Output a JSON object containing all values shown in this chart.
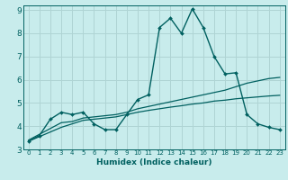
{
  "xlabel": "Humidex (Indice chaleur)",
  "background_color": "#c8ecec",
  "grid_color": "#afd4d4",
  "line_color": "#006060",
  "xlim": [
    -0.5,
    23.5
  ],
  "ylim": [
    3,
    9.2
  ],
  "xticks": [
    0,
    1,
    2,
    3,
    4,
    5,
    6,
    7,
    8,
    9,
    10,
    11,
    12,
    13,
    14,
    15,
    16,
    17,
    18,
    19,
    20,
    21,
    22,
    23
  ],
  "yticks": [
    3,
    4,
    5,
    6,
    7,
    8,
    9
  ],
  "curve1_x": [
    0,
    1,
    2,
    3,
    4,
    5,
    6,
    7,
    8,
    9,
    10,
    11,
    12,
    13,
    14,
    15,
    16,
    17,
    18,
    19,
    20,
    21,
    22,
    23
  ],
  "curve1_y": [
    3.35,
    3.6,
    4.3,
    4.6,
    4.5,
    4.6,
    4.1,
    3.85,
    3.85,
    4.5,
    5.15,
    5.35,
    8.25,
    8.65,
    8.0,
    9.05,
    8.25,
    7.0,
    6.25,
    6.3,
    4.5,
    4.1,
    3.95,
    3.85
  ],
  "curve2_x": [
    0,
    1,
    2,
    3,
    4,
    5,
    6,
    7,
    8,
    9,
    10,
    11,
    12,
    13,
    14,
    15,
    16,
    17,
    18,
    19,
    20,
    21,
    22,
    23
  ],
  "curve2_y": [
    3.4,
    3.65,
    3.9,
    4.15,
    4.2,
    4.35,
    4.4,
    4.45,
    4.5,
    4.6,
    4.75,
    4.85,
    4.95,
    5.05,
    5.15,
    5.25,
    5.35,
    5.45,
    5.55,
    5.7,
    5.85,
    5.95,
    6.05,
    6.1
  ],
  "curve3_x": [
    0,
    1,
    2,
    3,
    4,
    5,
    6,
    7,
    8,
    9,
    10,
    11,
    12,
    13,
    14,
    15,
    16,
    17,
    18,
    19,
    20,
    21,
    22,
    23
  ],
  "curve3_y": [
    3.35,
    3.55,
    3.75,
    3.95,
    4.1,
    4.25,
    4.3,
    4.35,
    4.4,
    4.5,
    4.6,
    4.68,
    4.75,
    4.82,
    4.88,
    4.95,
    5.0,
    5.08,
    5.12,
    5.18,
    5.22,
    5.26,
    5.3,
    5.33
  ]
}
